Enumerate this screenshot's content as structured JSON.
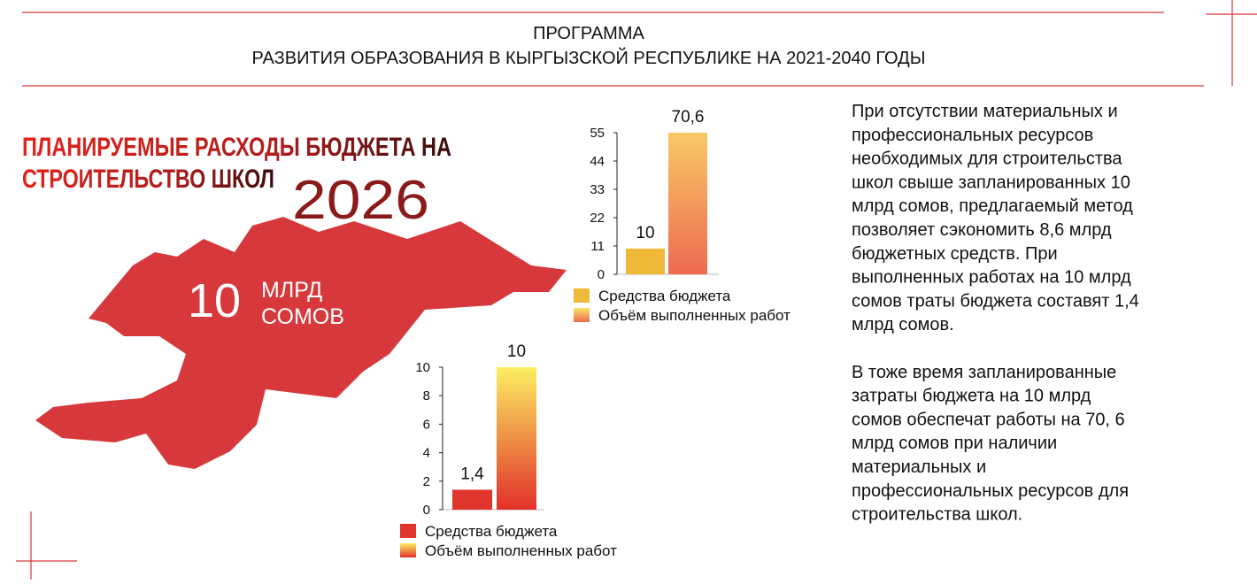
{
  "header": {
    "title_line1": "ПРОГРАММА",
    "title_line2": "РАЗВИТИЯ ОБРАЗОВАНИЯ В КЫРГЫЗСКОЙ РЕСПУБЛИКЕ НА 2021-2040 ГОДЫ"
  },
  "headline": {
    "line1": "ПЛАНИРУЕМЫЕ РАСХОДЫ БЮДЖЕТА НА",
    "line2": "СТРОИТЕЛЬСТВО ШКОЛ",
    "year": "2026"
  },
  "map_label": {
    "amount": "10",
    "unit_line1": "МЛРД",
    "unit_line2": "СОМОВ"
  },
  "text": {
    "paragraph1": [
      "При отсутствии материальных и",
      "профессиональных ресурсов",
      "необходимых для строительства",
      "школ свыше запланированных 10",
      "млрд сомов, предлагаемый метод",
      "позволяет сэкономить 8,6 млрд",
      "бюджетных средств. При",
      "выполненных работах на 10 млрд",
      "сомов траты бюджета составят 1,4",
      "млрд сомов."
    ],
    "paragraph2": [
      "В тоже время запланированные",
      "затраты бюджета на 10 млрд",
      "сомов обеспечат работы на 70, 6",
      "млрд сомов при наличии",
      "материальных и",
      "профессиональных ресурсов для",
      "строительства школ."
    ]
  },
  "chart_data": [
    {
      "type": "bar",
      "ylim": [
        0,
        55
      ],
      "yticks": [
        0,
        11,
        22,
        33,
        44,
        55
      ],
      "series": [
        {
          "name": "Средства бюджета",
          "color": "#f0b93a",
          "values": [
            10
          ],
          "value_labels": [
            "10"
          ]
        },
        {
          "name": "Объём выполненных работ",
          "color": [
            "#fbe36a",
            "#ef6a52"
          ],
          "values": [
            70.6
          ],
          "value_labels": [
            "70,6"
          ]
        }
      ]
    },
    {
      "type": "bar",
      "ylim": [
        0,
        10
      ],
      "yticks": [
        0,
        2,
        4,
        6,
        8,
        10
      ],
      "series": [
        {
          "name": "Средства бюджета",
          "color": "#e0352d",
          "values": [
            1.4
          ],
          "value_labels": [
            "1,4"
          ]
        },
        {
          "name": "Объём выполненных работ",
          "color": [
            "#fcef62",
            "#e2302a"
          ],
          "values": [
            10
          ],
          "value_labels": [
            "10"
          ]
        }
      ]
    }
  ]
}
